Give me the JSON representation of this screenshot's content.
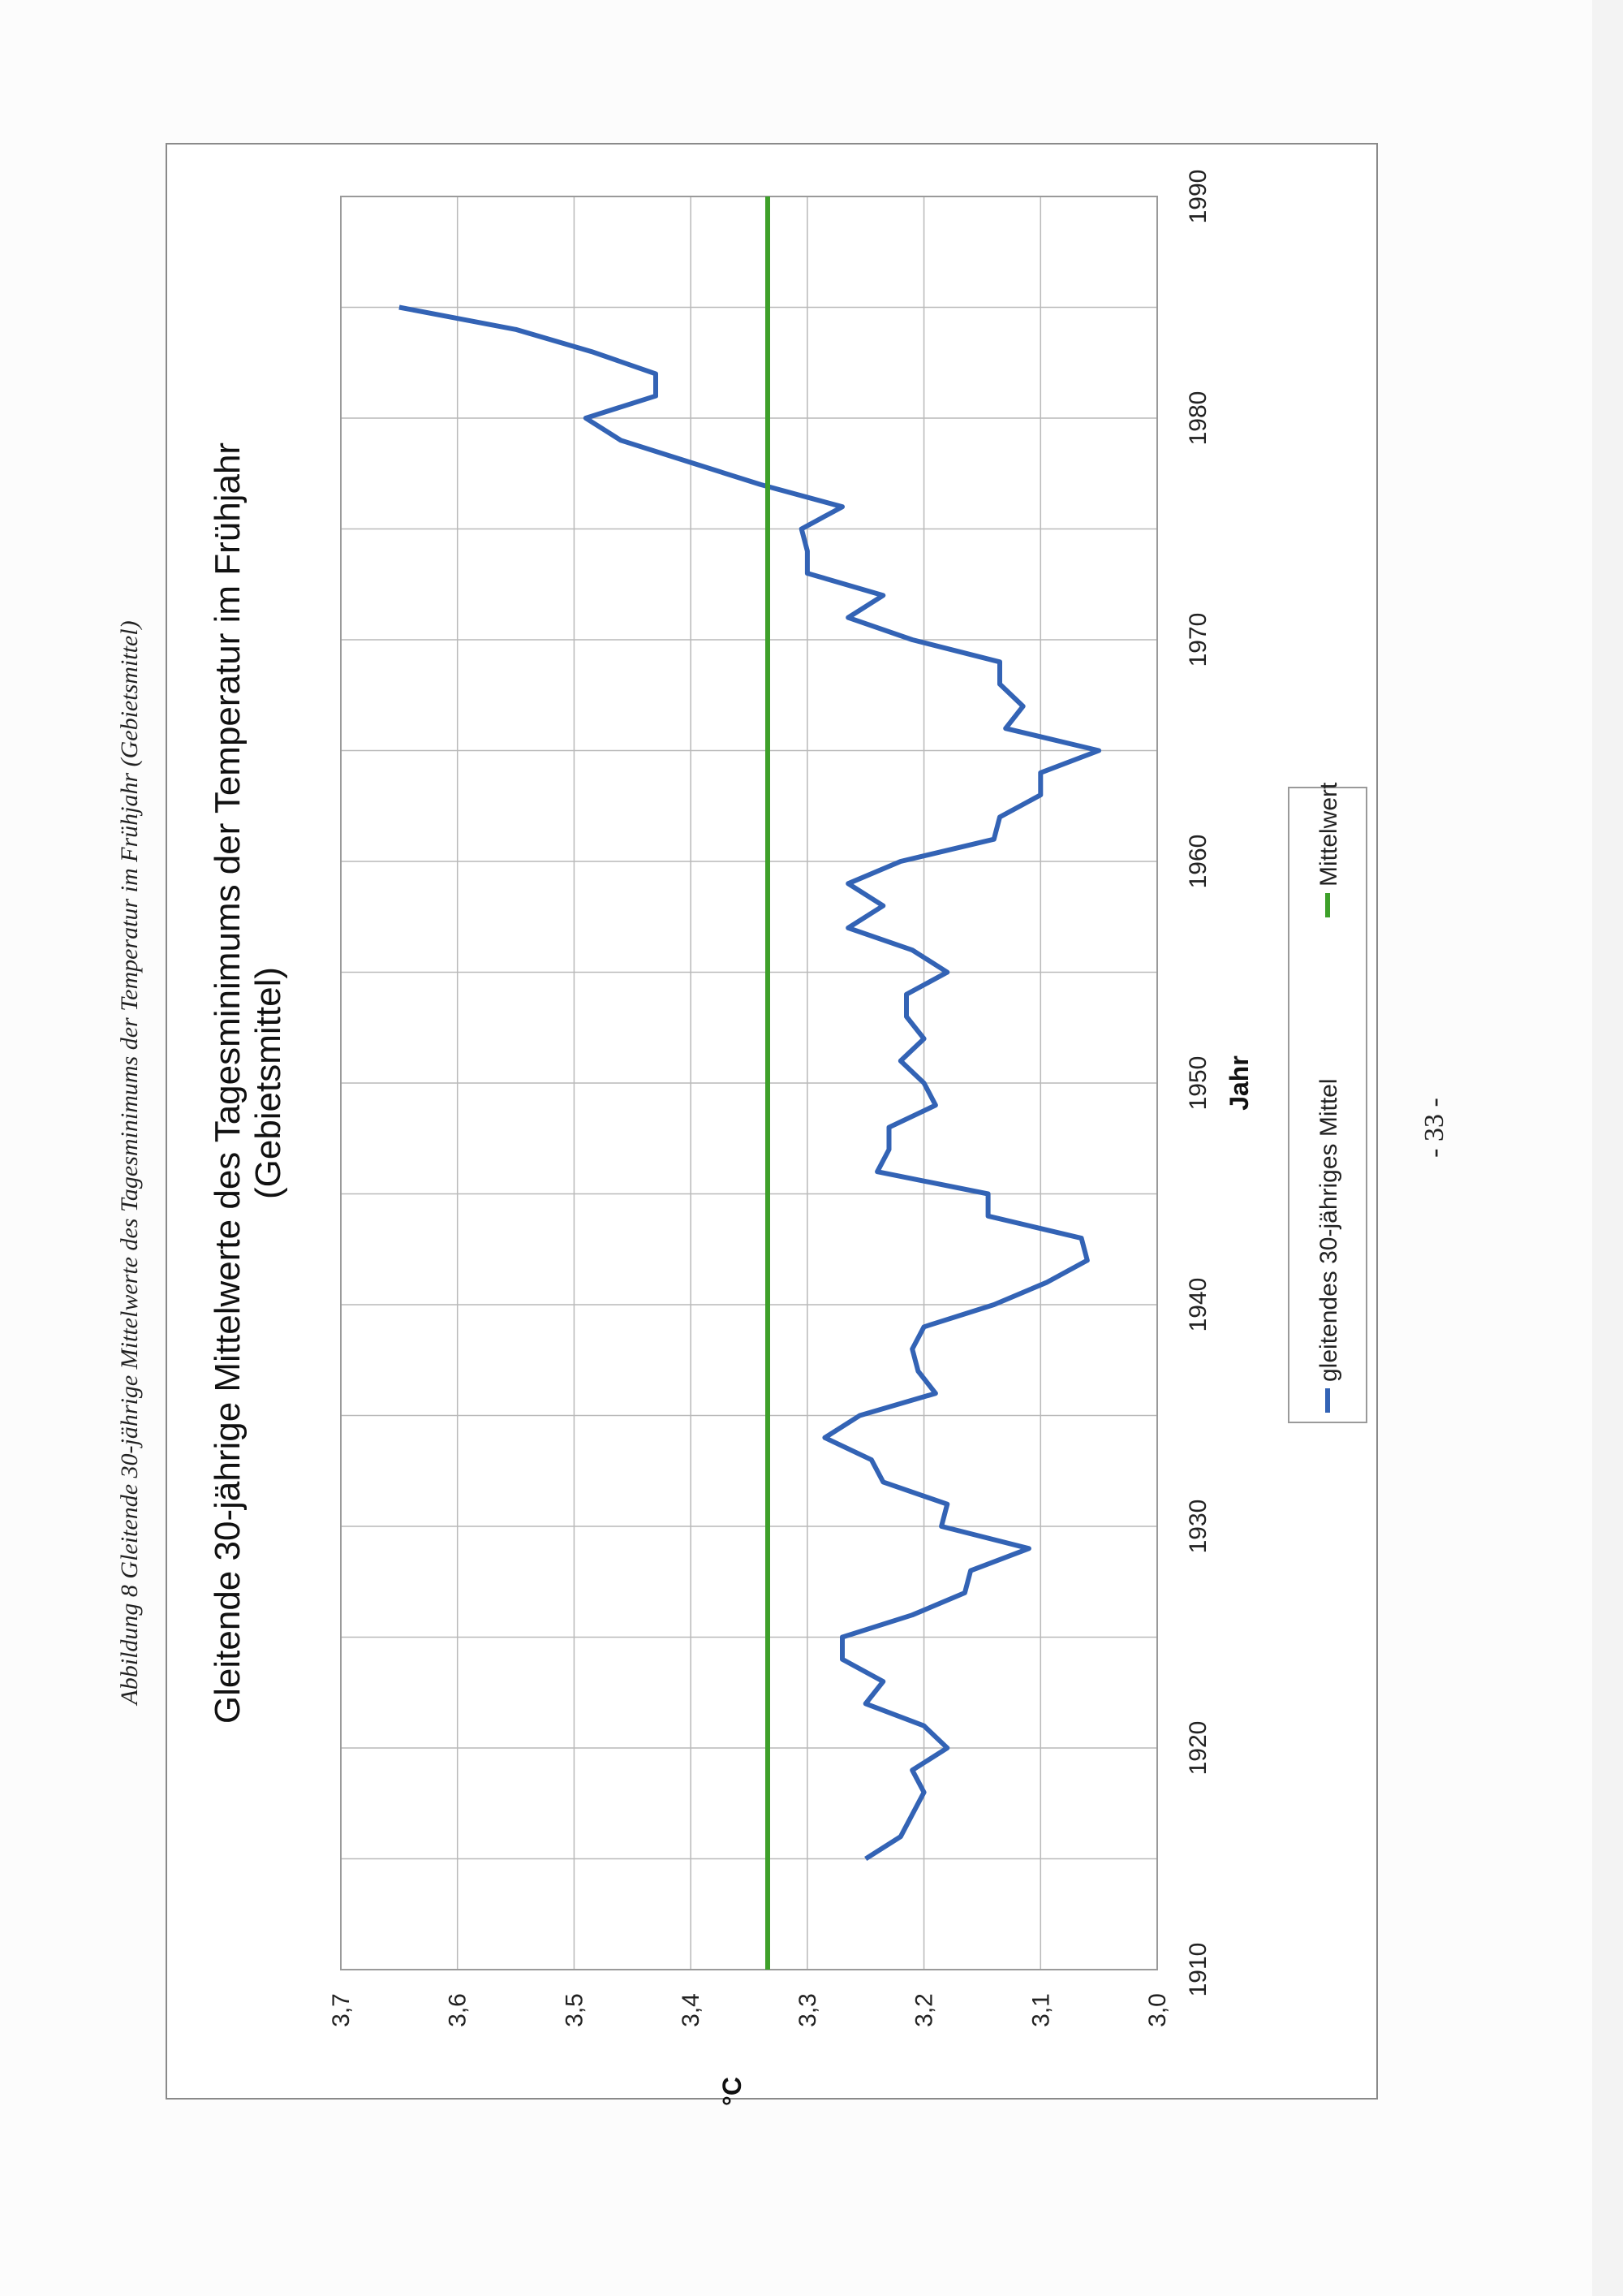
{
  "page": {
    "caption": "Abbildung 8 Gleitende 30-jährige Mittelwerte des Tagesminimums der Temperatur im Frühjahr (Gebietsmittel)",
    "page_number": "- 33 -"
  },
  "chart_data": {
    "type": "line",
    "title_lines": [
      "Gleitende 30-jährige Mittelwerte des Tagesminimums der Temperatur im Frühjahr",
      "(Gebietsmittel)"
    ],
    "xlabel": "Jahr",
    "ylabel": "°C",
    "xlim": [
      1910,
      1990
    ],
    "ylim": [
      3.0,
      3.7
    ],
    "x_ticks": [
      1910,
      1920,
      1930,
      1940,
      1950,
      1960,
      1970,
      1980,
      1990
    ],
    "x_tick_labels": [
      "1910",
      "1920",
      "1930",
      "1940",
      "1950",
      "1960",
      "1970",
      "1980",
      "1990"
    ],
    "y_ticks": [
      3.0,
      3.1,
      3.2,
      3.3,
      3.4,
      3.5,
      3.6,
      3.7
    ],
    "y_tick_labels": [
      "3,0",
      "3,1",
      "3,2",
      "3,3",
      "3,4",
      "3,5",
      "3,6",
      "3,7"
    ],
    "grid": true,
    "legend_position": "bottom",
    "orientation": "rotated-90-counterclockwise",
    "series": [
      {
        "name": "gleitendes 30-jähriges Mittel",
        "color": "#3363b5",
        "x": [
          1915,
          1916,
          1917,
          1918,
          1919,
          1920,
          1921,
          1922,
          1923,
          1924,
          1925,
          1926,
          1927,
          1928,
          1929,
          1930,
          1931,
          1932,
          1933,
          1934,
          1935,
          1936,
          1937,
          1938,
          1939,
          1940,
          1941,
          1942,
          1943,
          1944,
          1945,
          1946,
          1947,
          1948,
          1949,
          1950,
          1951,
          1952,
          1953,
          1954,
          1955,
          1956,
          1957,
          1958,
          1959,
          1960,
          1961,
          1962,
          1963,
          1964,
          1965,
          1966,
          1967,
          1968,
          1969,
          1970,
          1971,
          1972,
          1973,
          1974,
          1975,
          1976,
          1977,
          1978,
          1979,
          1980,
          1981,
          1982,
          1983,
          1984,
          1985
        ],
        "values": [
          3.25,
          3.22,
          3.21,
          3.2,
          3.21,
          3.18,
          3.2,
          3.25,
          3.235,
          3.27,
          3.27,
          3.21,
          3.165,
          3.16,
          3.11,
          3.185,
          3.18,
          3.235,
          3.245,
          3.285,
          3.255,
          3.19,
          3.205,
          3.21,
          3.2,
          3.14,
          3.095,
          3.06,
          3.065,
          3.145,
          3.145,
          3.24,
          3.23,
          3.23,
          3.19,
          3.2,
          3.22,
          3.2,
          3.215,
          3.215,
          3.18,
          3.21,
          3.265,
          3.235,
          3.265,
          3.22,
          3.14,
          3.135,
          3.1,
          3.1,
          3.05,
          3.13,
          3.115,
          3.135,
          3.135,
          3.21,
          3.265,
          3.235,
          3.3,
          3.3,
          3.305,
          3.27,
          3.34,
          3.4,
          3.46,
          3.49,
          3.43,
          3.43,
          3.485,
          3.55,
          3.65
        ]
      },
      {
        "name": "Mittelwert",
        "color": "#3ea02a",
        "x": [
          1910,
          1990
        ],
        "values": [
          3.334,
          3.334
        ]
      }
    ]
  }
}
